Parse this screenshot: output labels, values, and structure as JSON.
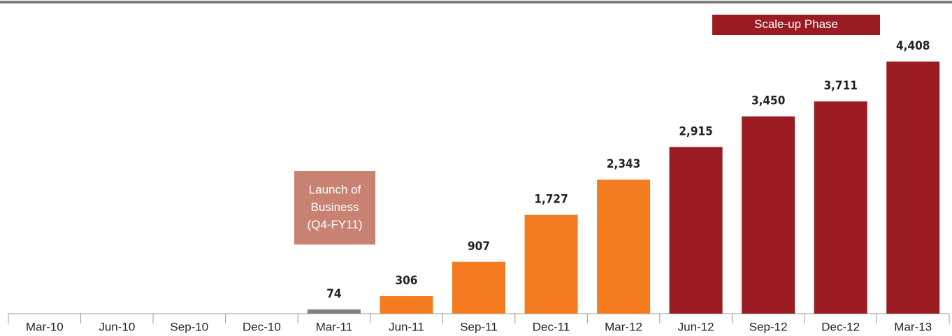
{
  "chart_data": {
    "type": "bar",
    "categories": [
      "Mar-10",
      "Jun-10",
      "Sep-10",
      "Dec-10",
      "Mar-11",
      "Jun-11",
      "Sep-11",
      "Dec-11",
      "Mar-12",
      "Jun-12",
      "Sep-12",
      "Dec-12",
      "Mar-13"
    ],
    "values": [
      null,
      null,
      null,
      null,
      74,
      306,
      907,
      1727,
      2343,
      2915,
      3450,
      3711,
      4408
    ],
    "value_labels": [
      null,
      null,
      null,
      null,
      "74",
      "306",
      "907",
      "1,727",
      "2,343",
      "2,915",
      "3,450",
      "3,711",
      "4,408"
    ],
    "colors": [
      "#7f7f7f",
      "#7f7f7f",
      "#7f7f7f",
      "#7f7f7f",
      "#7f7f7f",
      "#f47b20",
      "#f47b20",
      "#f47b20",
      "#f47b20",
      "#9b1b22",
      "#9b1b22",
      "#9b1b22",
      "#9b1b22"
    ],
    "ylim": [
      0,
      5400
    ],
    "annotations": [
      {
        "lines": [
          "Launch of",
          "Business",
          "(Q4-FY11)"
        ],
        "color": "#c98272"
      },
      {
        "lines": [
          "Scale-up Phase"
        ],
        "color": "#9b1b22"
      }
    ]
  }
}
